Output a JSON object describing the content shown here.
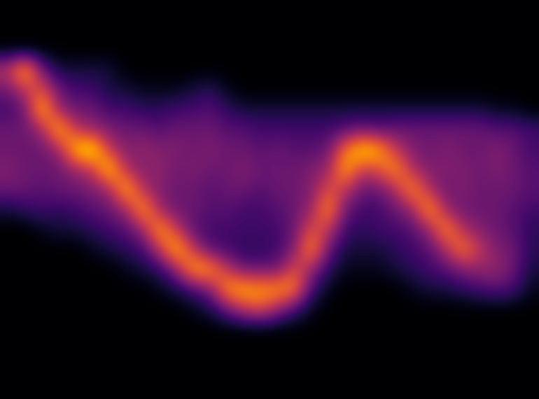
{
  "chart_data": {
    "type": "heatmap",
    "color": "inferno",
    "tick_labels": false,
    "color_range": [
      0,
      1
    ],
    "cells": [
      [
        0,
        0,
        0,
        0,
        0,
        0,
        0,
        0,
        0,
        0,
        0,
        0,
        0,
        0,
        0,
        0,
        0,
        0,
        0,
        0,
        0,
        0,
        0,
        0,
        0,
        0,
        0,
        0,
        0,
        0,
        0,
        0
      ],
      [
        0,
        0,
        0,
        0,
        0,
        0,
        0,
        0,
        0,
        0,
        0,
        0,
        0,
        0,
        0,
        0,
        0,
        0,
        0,
        0,
        0,
        0,
        0,
        0,
        0,
        0,
        0,
        0,
        0,
        0,
        0,
        0
      ],
      [
        0,
        0,
        0,
        0,
        0,
        0,
        0,
        0,
        0,
        0,
        0,
        0,
        0,
        0,
        0,
        0,
        0,
        0,
        0,
        0,
        0,
        0,
        0,
        0,
        0,
        0,
        0,
        0,
        0,
        0,
        0,
        0
      ],
      [
        0.5,
        0.9,
        0.3,
        0.1,
        0.1,
        0.1,
        0.1,
        0,
        0,
        0,
        0,
        0,
        0,
        0,
        0,
        0,
        0,
        0,
        0,
        0,
        0,
        0,
        0,
        0,
        0,
        0,
        0,
        0,
        0,
        0,
        0,
        0
      ],
      [
        0.3,
        0.5,
        0.6,
        0.3,
        0.2,
        0.2,
        0.1,
        0.1,
        0.05,
        0.05,
        0.05,
        0.1,
        0.15,
        0.05,
        0,
        0,
        0,
        0,
        0,
        0,
        0,
        0,
        0,
        0,
        0,
        0,
        0,
        0,
        0,
        0,
        0,
        0
      ],
      [
        0.2,
        0.3,
        0.9,
        0.4,
        0.3,
        0.3,
        0.2,
        0.2,
        0.15,
        0.15,
        0.2,
        0.2,
        0.25,
        0.15,
        0.1,
        0.1,
        0.1,
        0.1,
        0.1,
        0.1,
        0.1,
        0.1,
        0.1,
        0.1,
        0.1,
        0.1,
        0.1,
        0.1,
        0.1,
        0.05,
        0.05,
        0
      ],
      [
        0.3,
        0.3,
        0.4,
        0.9,
        0.5,
        0.4,
        0.35,
        0.3,
        0.3,
        0.25,
        0.3,
        0.3,
        0.3,
        0.25,
        0.25,
        0.2,
        0.2,
        0.2,
        0.2,
        0.2,
        0.25,
        0.3,
        0.25,
        0.3,
        0.3,
        0.3,
        0.3,
        0.3,
        0.3,
        0.25,
        0.25,
        0.2
      ],
      [
        0.3,
        0.3,
        0.3,
        0.4,
        0.9,
        1.0,
        0.5,
        0.35,
        0.4,
        0.35,
        0.35,
        0.3,
        0.35,
        0.3,
        0.3,
        0.25,
        0.3,
        0.25,
        0.25,
        0.3,
        0.7,
        0.95,
        0.85,
        0.5,
        0.35,
        0.3,
        0.35,
        0.3,
        0.3,
        0.35,
        0.3,
        0.2
      ],
      [
        0.35,
        0.3,
        0.3,
        0.3,
        0.4,
        0.5,
        0.95,
        0.45,
        0.35,
        0.4,
        0.3,
        0.35,
        0.3,
        0.3,
        0.35,
        0.3,
        0.3,
        0.3,
        0.35,
        0.4,
        0.85,
        0.5,
        0.6,
        0.8,
        0.45,
        0.35,
        0.35,
        0.35,
        0.3,
        0.35,
        0.3,
        0.25
      ],
      [
        0.3,
        0.3,
        0.25,
        0.3,
        0.3,
        0.35,
        0.4,
        0.9,
        0.45,
        0.35,
        0.3,
        0.3,
        0.25,
        0.3,
        0.3,
        0.25,
        0.3,
        0.3,
        0.35,
        0.6,
        0.5,
        0.3,
        0.3,
        0.45,
        0.8,
        0.45,
        0.3,
        0.35,
        0.3,
        0.3,
        0.3,
        0.25
      ],
      [
        0.1,
        0.15,
        0.2,
        0.15,
        0.2,
        0.25,
        0.3,
        0.4,
        0.85,
        0.4,
        0.3,
        0.3,
        0.25,
        0.25,
        0.2,
        0.2,
        0.25,
        0.3,
        0.4,
        0.8,
        0.3,
        0.2,
        0.2,
        0.3,
        0.4,
        0.85,
        0.4,
        0.3,
        0.3,
        0.3,
        0.25,
        0.2
      ],
      [
        0,
        0,
        0.05,
        0.1,
        0.1,
        0.15,
        0.2,
        0.25,
        0.4,
        0.85,
        0.5,
        0.25,
        0.2,
        0.2,
        0.2,
        0.2,
        0.2,
        0.3,
        0.6,
        0.5,
        0.2,
        0.15,
        0.2,
        0.2,
        0.25,
        0.4,
        0.8,
        0.45,
        0.35,
        0.3,
        0.25,
        0.15
      ],
      [
        0,
        0,
        0,
        0,
        0,
        0.05,
        0.1,
        0.15,
        0.2,
        0.5,
        0.9,
        0.5,
        0.25,
        0.2,
        0.15,
        0.15,
        0.2,
        0.35,
        0.8,
        0.3,
        0.1,
        0.1,
        0.1,
        0.15,
        0.2,
        0.25,
        0.45,
        0.75,
        0.5,
        0.35,
        0.3,
        0.15
      ],
      [
        0,
        0,
        0,
        0,
        0,
        0,
        0,
        0.05,
        0.1,
        0.15,
        0.4,
        0.85,
        0.8,
        0.5,
        0.3,
        0.3,
        0.3,
        0.6,
        0.4,
        0.15,
        0.05,
        0.05,
        0.05,
        0.1,
        0.15,
        0.2,
        0.25,
        0.35,
        0.4,
        0.4,
        0.3,
        0.1
      ],
      [
        0,
        0,
        0,
        0,
        0,
        0,
        0,
        0,
        0,
        0.05,
        0.1,
        0.2,
        0.35,
        0.8,
        0.85,
        0.8,
        0.8,
        0.75,
        0.2,
        0.05,
        0,
        0,
        0,
        0,
        0.05,
        0.1,
        0.1,
        0.15,
        0.2,
        0.25,
        0.2,
        0.05
      ],
      [
        0,
        0,
        0,
        0,
        0,
        0,
        0,
        0,
        0,
        0,
        0,
        0.05,
        0.1,
        0.3,
        0.5,
        0.6,
        0.4,
        0.2,
        0.05,
        0,
        0,
        0,
        0,
        0,
        0,
        0,
        0,
        0,
        0,
        0,
        0,
        0
      ],
      [
        0,
        0,
        0,
        0,
        0,
        0,
        0,
        0,
        0,
        0,
        0,
        0,
        0,
        0,
        0,
        0,
        0,
        0,
        0,
        0,
        0,
        0,
        0,
        0,
        0,
        0,
        0,
        0,
        0,
        0,
        0,
        0
      ],
      [
        0,
        0,
        0,
        0,
        0,
        0,
        0,
        0,
        0,
        0,
        0,
        0,
        0,
        0,
        0,
        0,
        0,
        0,
        0,
        0,
        0,
        0,
        0,
        0,
        0,
        0,
        0,
        0,
        0,
        0,
        0,
        0
      ],
      [
        0,
        0,
        0,
        0,
        0,
        0,
        0,
        0,
        0,
        0,
        0,
        0,
        0,
        0,
        0,
        0,
        0,
        0,
        0,
        0,
        0,
        0,
        0,
        0,
        0,
        0,
        0,
        0,
        0,
        0,
        0,
        0
      ],
      [
        0,
        0,
        0,
        0,
        0,
        0,
        0,
        0,
        0,
        0,
        0,
        0,
        0,
        0,
        0,
        0,
        0,
        0,
        0,
        0,
        0,
        0,
        0,
        0,
        0,
        0,
        0,
        0,
        0,
        0,
        0,
        0
      ]
    ]
  }
}
